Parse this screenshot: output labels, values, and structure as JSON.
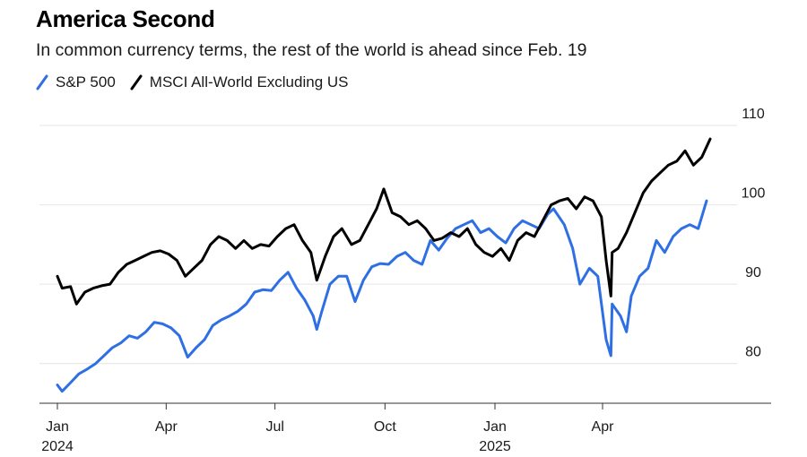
{
  "chart_data": {
    "type": "line",
    "title": "America Second",
    "subtitle": "In common currency terms, the rest of the world is ahead since Feb. 19",
    "ylim": [
      75,
      110
    ],
    "yticks": [
      80,
      90,
      100,
      110
    ],
    "x_domain": [
      "2024-01-01",
      "2025-06-30"
    ],
    "xticks": [
      {
        "date": "2024-01-01",
        "label": "Jan",
        "sublabel": "2024"
      },
      {
        "date": "2024-04-01",
        "label": "Apr",
        "sublabel": ""
      },
      {
        "date": "2024-07-01",
        "label": "Jul",
        "sublabel": ""
      },
      {
        "date": "2024-10-01",
        "label": "Oct",
        "sublabel": ""
      },
      {
        "date": "2025-01-01",
        "label": "Jan",
        "sublabel": "2025"
      },
      {
        "date": "2025-04-01",
        "label": "Apr",
        "sublabel": ""
      }
    ],
    "grid": true,
    "legend_position": "top-left",
    "series": [
      {
        "name": "S&P 500",
        "color": "#2f6fe4",
        "points": [
          [
            "2024-01-01",
            77.3
          ],
          [
            "2024-01-05",
            76.5
          ],
          [
            "2024-01-12",
            77.6
          ],
          [
            "2024-01-19",
            78.7
          ],
          [
            "2024-01-26",
            79.3
          ],
          [
            "2024-02-02",
            80.0
          ],
          [
            "2024-02-09",
            81.0
          ],
          [
            "2024-02-16",
            82.0
          ],
          [
            "2024-02-23",
            82.6
          ],
          [
            "2024-03-01",
            83.5
          ],
          [
            "2024-03-08",
            83.2
          ],
          [
            "2024-03-15",
            84.0
          ],
          [
            "2024-03-22",
            85.2
          ],
          [
            "2024-03-29",
            85.0
          ],
          [
            "2024-04-05",
            84.5
          ],
          [
            "2024-04-12",
            83.5
          ],
          [
            "2024-04-19",
            80.8
          ],
          [
            "2024-04-26",
            82.0
          ],
          [
            "2024-05-03",
            83.0
          ],
          [
            "2024-05-10",
            84.8
          ],
          [
            "2024-05-17",
            85.5
          ],
          [
            "2024-05-24",
            86.0
          ],
          [
            "2024-05-31",
            86.6
          ],
          [
            "2024-06-07",
            87.5
          ],
          [
            "2024-06-14",
            89.0
          ],
          [
            "2024-06-21",
            89.3
          ],
          [
            "2024-06-28",
            89.2
          ],
          [
            "2024-07-05",
            90.5
          ],
          [
            "2024-07-12",
            91.5
          ],
          [
            "2024-07-19",
            89.5
          ],
          [
            "2024-07-26",
            88.0
          ],
          [
            "2024-08-02",
            86.0
          ],
          [
            "2024-08-05",
            84.3
          ],
          [
            "2024-08-09",
            86.5
          ],
          [
            "2024-08-16",
            90.0
          ],
          [
            "2024-08-23",
            91.0
          ],
          [
            "2024-08-30",
            91.0
          ],
          [
            "2024-09-06",
            87.8
          ],
          [
            "2024-09-13",
            90.5
          ],
          [
            "2024-09-20",
            92.2
          ],
          [
            "2024-09-27",
            92.6
          ],
          [
            "2024-10-04",
            92.5
          ],
          [
            "2024-10-11",
            93.5
          ],
          [
            "2024-10-18",
            94.0
          ],
          [
            "2024-10-25",
            93.0
          ],
          [
            "2024-11-01",
            92.5
          ],
          [
            "2024-11-08",
            95.5
          ],
          [
            "2024-11-15",
            94.3
          ],
          [
            "2024-11-22",
            95.8
          ],
          [
            "2024-11-29",
            97.0
          ],
          [
            "2024-12-06",
            97.5
          ],
          [
            "2024-12-13",
            98.0
          ],
          [
            "2024-12-20",
            96.5
          ],
          [
            "2024-12-27",
            97.0
          ],
          [
            "2025-01-03",
            96.0
          ],
          [
            "2025-01-10",
            95.2
          ],
          [
            "2025-01-17",
            97.0
          ],
          [
            "2025-01-24",
            98.0
          ],
          [
            "2025-01-31",
            97.5
          ],
          [
            "2025-02-07",
            97.0
          ],
          [
            "2025-02-14",
            98.8
          ],
          [
            "2025-02-19",
            99.5
          ],
          [
            "2025-02-28",
            97.5
          ],
          [
            "2025-03-07",
            94.5
          ],
          [
            "2025-03-13",
            90.0
          ],
          [
            "2025-03-21",
            92.0
          ],
          [
            "2025-03-28",
            91.0
          ],
          [
            "2025-04-04",
            83.0
          ],
          [
            "2025-04-08",
            81.0
          ],
          [
            "2025-04-09",
            87.5
          ],
          [
            "2025-04-16",
            86.0
          ],
          [
            "2025-04-21",
            84.0
          ],
          [
            "2025-04-25",
            88.5
          ],
          [
            "2025-05-02",
            91.0
          ],
          [
            "2025-05-09",
            92.0
          ],
          [
            "2025-05-16",
            95.5
          ],
          [
            "2025-05-23",
            94.0
          ],
          [
            "2025-05-30",
            96.0
          ],
          [
            "2025-06-06",
            97.0
          ],
          [
            "2025-06-13",
            97.5
          ],
          [
            "2025-06-20",
            97.0
          ],
          [
            "2025-06-27",
            100.5
          ]
        ]
      },
      {
        "name": "MSCI All-World Excluding US",
        "color": "#000000",
        "points": [
          [
            "2024-01-01",
            91.0
          ],
          [
            "2024-01-05",
            89.5
          ],
          [
            "2024-01-12",
            89.7
          ],
          [
            "2024-01-17",
            87.5
          ],
          [
            "2024-01-24",
            89.0
          ],
          [
            "2024-01-31",
            89.5
          ],
          [
            "2024-02-07",
            89.8
          ],
          [
            "2024-02-14",
            90.0
          ],
          [
            "2024-02-21",
            91.5
          ],
          [
            "2024-02-28",
            92.5
          ],
          [
            "2024-03-06",
            93.0
          ],
          [
            "2024-03-13",
            93.5
          ],
          [
            "2024-03-20",
            94.0
          ],
          [
            "2024-03-27",
            94.2
          ],
          [
            "2024-04-03",
            93.8
          ],
          [
            "2024-04-10",
            93.0
          ],
          [
            "2024-04-17",
            91.0
          ],
          [
            "2024-04-24",
            92.0
          ],
          [
            "2024-05-01",
            93.0
          ],
          [
            "2024-05-08",
            95.0
          ],
          [
            "2024-05-15",
            96.0
          ],
          [
            "2024-05-22",
            95.5
          ],
          [
            "2024-05-29",
            94.5
          ],
          [
            "2024-06-05",
            95.5
          ],
          [
            "2024-06-12",
            94.5
          ],
          [
            "2024-06-19",
            95.0
          ],
          [
            "2024-06-26",
            94.8
          ],
          [
            "2024-07-03",
            96.0
          ],
          [
            "2024-07-10",
            97.0
          ],
          [
            "2024-07-17",
            97.5
          ],
          [
            "2024-07-24",
            95.5
          ],
          [
            "2024-07-31",
            94.0
          ],
          [
            "2024-08-05",
            90.5
          ],
          [
            "2024-08-12",
            93.5
          ],
          [
            "2024-08-19",
            96.0
          ],
          [
            "2024-08-26",
            97.0
          ],
          [
            "2024-09-03",
            95.0
          ],
          [
            "2024-09-10",
            95.5
          ],
          [
            "2024-09-17",
            97.5
          ],
          [
            "2024-09-24",
            99.5
          ],
          [
            "2024-09-30",
            102.0
          ],
          [
            "2024-10-07",
            99.0
          ],
          [
            "2024-10-14",
            98.5
          ],
          [
            "2024-10-21",
            97.5
          ],
          [
            "2024-10-28",
            98.0
          ],
          [
            "2024-11-04",
            97.0
          ],
          [
            "2024-11-11",
            95.5
          ],
          [
            "2024-11-18",
            95.8
          ],
          [
            "2024-11-25",
            96.5
          ],
          [
            "2024-12-02",
            96.0
          ],
          [
            "2024-12-09",
            97.0
          ],
          [
            "2024-12-16",
            95.0
          ],
          [
            "2024-12-23",
            94.0
          ],
          [
            "2024-12-30",
            93.5
          ],
          [
            "2025-01-06",
            94.5
          ],
          [
            "2025-01-13",
            93.0
          ],
          [
            "2025-01-20",
            95.5
          ],
          [
            "2025-01-27",
            96.5
          ],
          [
            "2025-02-03",
            96.0
          ],
          [
            "2025-02-10",
            98.0
          ],
          [
            "2025-02-17",
            100.0
          ],
          [
            "2025-02-24",
            100.5
          ],
          [
            "2025-03-03",
            100.8
          ],
          [
            "2025-03-10",
            99.5
          ],
          [
            "2025-03-17",
            101.0
          ],
          [
            "2025-03-24",
            100.5
          ],
          [
            "2025-03-31",
            98.5
          ],
          [
            "2025-04-04",
            93.0
          ],
          [
            "2025-04-08",
            88.5
          ],
          [
            "2025-04-09",
            94.0
          ],
          [
            "2025-04-14",
            94.5
          ],
          [
            "2025-04-21",
            96.5
          ],
          [
            "2025-04-28",
            99.0
          ],
          [
            "2025-05-05",
            101.5
          ],
          [
            "2025-05-12",
            103.0
          ],
          [
            "2025-05-19",
            104.0
          ],
          [
            "2025-05-26",
            105.0
          ],
          [
            "2025-06-02",
            105.5
          ],
          [
            "2025-06-09",
            106.8
          ],
          [
            "2025-06-16",
            105.0
          ],
          [
            "2025-06-23",
            106.0
          ],
          [
            "2025-06-30",
            108.3
          ]
        ]
      }
    ]
  }
}
